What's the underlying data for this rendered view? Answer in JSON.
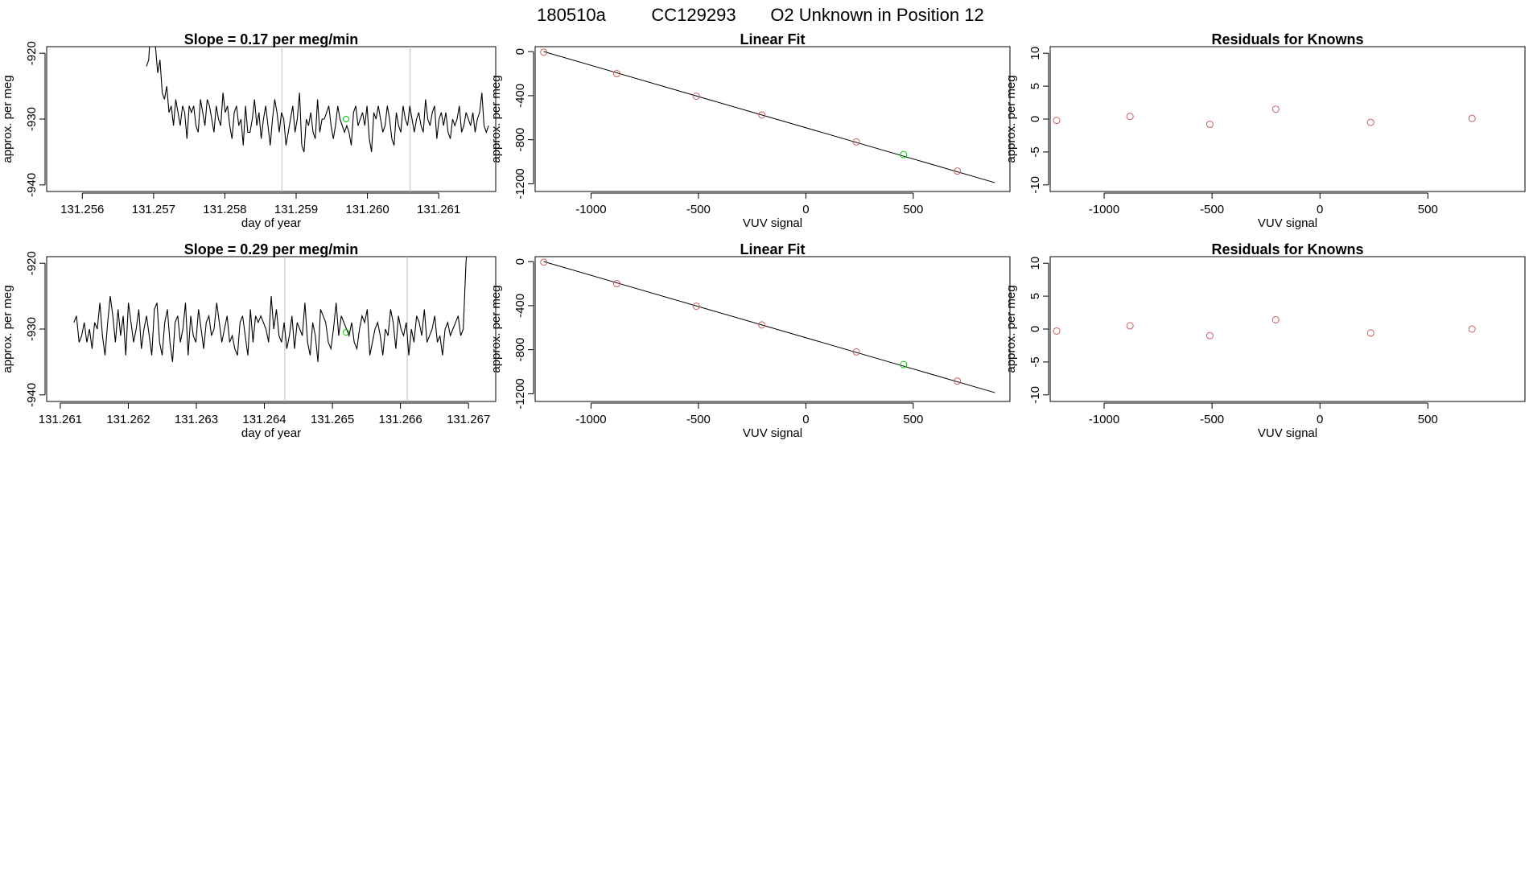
{
  "page_title": {
    "run": "180510a",
    "cylinder": "CC129293",
    "description": "O2 Unknown in Position  12"
  },
  "colors": {
    "line": "#000000",
    "known_point": "#cd5c5c",
    "unknown_point": "#00cc00",
    "vline": "#bebebe"
  },
  "chart_data": [
    {
      "id": "ts1",
      "type": "line",
      "title": "Slope =  0.17  per meg/min",
      "xlabel": "day of year",
      "ylabel": "approx. per meg",
      "xlim": [
        131.2555,
        131.2618
      ],
      "ylim": [
        -941,
        -919
      ],
      "xticks": [
        131.256,
        131.257,
        131.258,
        131.259,
        131.26,
        131.261
      ],
      "xtick_labels": [
        "131.256",
        "131.257",
        "131.258",
        "131.259",
        "131.260",
        "131.261"
      ],
      "yticks": [
        -920,
        -930,
        -940
      ],
      "ytick_labels": [
        "-920",
        "-930",
        "-940"
      ],
      "vlines": [
        131.2588,
        131.2606
      ],
      "highlight_point": {
        "x": 131.2597,
        "y": -930
      },
      "series": {
        "x_start": 131.2569,
        "x_end": 131.2617,
        "y": [
          -922,
          -921,
          -915,
          -917,
          -919,
          -923,
          -921,
          -926,
          -927,
          -925,
          -929,
          -928,
          -931,
          -927,
          -929,
          -931,
          -928,
          -929,
          -933,
          -928,
          -929,
          -928,
          -931,
          -932,
          -927,
          -929,
          -931,
          -927,
          -928,
          -930,
          -932,
          -928,
          -930,
          -931,
          -926,
          -929,
          -928,
          -931,
          -933,
          -929,
          -928,
          -931,
          -930,
          -934,
          -928,
          -932,
          -932,
          -930,
          -927,
          -931,
          -929,
          -933,
          -930,
          -928,
          -931,
          -934,
          -930,
          -927,
          -929,
          -932,
          -929,
          -930,
          -934,
          -932,
          -930,
          -928,
          -932,
          -930,
          -926,
          -934,
          -935,
          -930,
          -931,
          -929,
          -932,
          -933,
          -927,
          -932,
          -930,
          -930,
          -929,
          -928,
          -931,
          -933,
          -931,
          -928,
          -930,
          -931,
          -932,
          -931,
          -932,
          -934,
          -929,
          -928,
          -931,
          -930,
          -929,
          -931,
          -928,
          -933,
          -935,
          -929,
          -930,
          -928,
          -930,
          -932,
          -931,
          -928,
          -930,
          -933,
          -934,
          -929,
          -931,
          -932,
          -928,
          -930,
          -931,
          -928,
          -930,
          -932,
          -930,
          -929,
          -931,
          -932,
          -927,
          -930,
          -931,
          -929,
          -928,
          -933,
          -930,
          -929,
          -931,
          -929,
          -932,
          -933,
          -930,
          -931,
          -930,
          -928,
          -932,
          -931,
          -929,
          -930,
          -931,
          -929,
          -932,
          -930,
          -929,
          -926,
          -931,
          -932,
          -931
        ]
      }
    },
    {
      "id": "lf1",
      "type": "scatter",
      "title": "Linear Fit",
      "xlabel": "VUV signal",
      "ylabel": "approx. per meg",
      "xlim": [
        -1260,
        950
      ],
      "ylim": [
        -1270,
        45
      ],
      "xticks": [
        -1000,
        -500,
        0,
        500
      ],
      "xtick_labels": [
        "-1000",
        "-500",
        "0",
        "500"
      ],
      "yticks": [
        0,
        -400,
        -800,
        -1200
      ],
      "ytick_labels": [
        "0",
        "-400",
        "-800",
        "-1200"
      ],
      "fit_line": {
        "x0": -1220,
        "y0": 0,
        "x1": 880,
        "y1": -1190
      },
      "known_points": [
        {
          "x": -1220,
          "y": -5
        },
        {
          "x": -880,
          "y": -200
        },
        {
          "x": -510,
          "y": -405
        },
        {
          "x": -205,
          "y": -575
        },
        {
          "x": 235,
          "y": -820
        },
        {
          "x": 705,
          "y": -1085
        }
      ],
      "unknown_points": [
        {
          "x": 455,
          "y": -935
        }
      ]
    },
    {
      "id": "rs1",
      "type": "scatter",
      "title": "Residuals for Knowns",
      "xlabel": "VUV signal",
      "ylabel": "approx. per meg",
      "xlim": [
        -1250,
        950
      ],
      "ylim": [
        -11,
        11
      ],
      "xticks": [
        -1000,
        -500,
        0,
        500
      ],
      "xtick_labels": [
        "-1000",
        "-500",
        "0",
        "500"
      ],
      "yticks": [
        10,
        5,
        0,
        -5,
        -10
      ],
      "ytick_labels": [
        "10",
        "5",
        "0",
        "-5",
        "-10"
      ],
      "known_points": [
        {
          "x": -1220,
          "y": -0.2
        },
        {
          "x": -880,
          "y": 0.4
        },
        {
          "x": -510,
          "y": -0.8
        },
        {
          "x": -205,
          "y": 1.5
        },
        {
          "x": 235,
          "y": -0.5
        },
        {
          "x": 705,
          "y": 0.1
        }
      ]
    },
    {
      "id": "ts2",
      "type": "line",
      "title": "Slope =  0.29  per meg/min",
      "xlabel": "day of year",
      "ylabel": "approx. per meg",
      "xlim": [
        131.2608,
        131.2674
      ],
      "ylim": [
        -941,
        -919
      ],
      "xticks": [
        131.261,
        131.262,
        131.263,
        131.264,
        131.265,
        131.266,
        131.267
      ],
      "xtick_labels": [
        "131.261",
        "131.262",
        "131.263",
        "131.264",
        "131.265",
        "131.266",
        "131.267"
      ],
      "yticks": [
        -920,
        -930,
        -940
      ],
      "ytick_labels": [
        "-920",
        "-930",
        "-940"
      ],
      "vlines": [
        131.2643,
        131.2661
      ],
      "highlight_point": {
        "x": 131.2652,
        "y": -930.5
      },
      "series": {
        "x_start": 131.2612,
        "x_end": 131.267,
        "y": [
          -929,
          -928,
          -932,
          -931,
          -929,
          -932,
          -930,
          -933,
          -929,
          -930,
          -926,
          -931,
          -934,
          -929,
          -925,
          -928,
          -932,
          -927,
          -931,
          -928,
          -934,
          -926,
          -929,
          -932,
          -930,
          -927,
          -933,
          -930,
          -928,
          -931,
          -934,
          -927,
          -926,
          -932,
          -934,
          -929,
          -927,
          -932,
          -935,
          -929,
          -928,
          -932,
          -930,
          -926,
          -934,
          -928,
          -931,
          -932,
          -927,
          -930,
          -933,
          -929,
          -928,
          -931,
          -930,
          -926,
          -929,
          -932,
          -930,
          -928,
          -932,
          -931,
          -933,
          -934,
          -929,
          -928,
          -931,
          -934,
          -927,
          -932,
          -928,
          -929,
          -928,
          -929,
          -930,
          -932,
          -925,
          -930,
          -927,
          -931,
          -932,
          -929,
          -933,
          -931,
          -928,
          -933,
          -929,
          -930,
          -931,
          -926,
          -932,
          -934,
          -929,
          -931,
          -935,
          -927,
          -928,
          -929,
          -932,
          -933,
          -930,
          -926,
          -931,
          -928,
          -929,
          -930,
          -931,
          -929,
          -932,
          -933,
          -930,
          -928,
          -929,
          -927,
          -934,
          -932,
          -930,
          -929,
          -931,
          -934,
          -930,
          -931,
          -927,
          -929,
          -933,
          -928,
          -930,
          -931,
          -929,
          -934,
          -930,
          -932,
          -928,
          -929,
          -931,
          -927,
          -932,
          -931,
          -930,
          -928,
          -932,
          -931,
          -934,
          -930,
          -929,
          -931,
          -930,
          -929,
          -928,
          -931,
          -930,
          -920,
          -915
        ]
      }
    },
    {
      "id": "lf2",
      "type": "scatter",
      "title": "Linear Fit",
      "xlabel": "VUV signal",
      "ylabel": "approx. per meg",
      "xlim": [
        -1260,
        950
      ],
      "ylim": [
        -1270,
        45
      ],
      "xticks": [
        -1000,
        -500,
        0,
        500
      ],
      "xtick_labels": [
        "-1000",
        "-500",
        "0",
        "500"
      ],
      "yticks": [
        0,
        -400,
        -800,
        -1200
      ],
      "ytick_labels": [
        "0",
        "-400",
        "-800",
        "-1200"
      ],
      "fit_line": {
        "x0": -1220,
        "y0": 0,
        "x1": 880,
        "y1": -1190
      },
      "known_points": [
        {
          "x": -1220,
          "y": -5
        },
        {
          "x": -880,
          "y": -200
        },
        {
          "x": -510,
          "y": -405
        },
        {
          "x": -205,
          "y": -575
        },
        {
          "x": 235,
          "y": -820
        },
        {
          "x": 705,
          "y": -1085
        }
      ],
      "unknown_points": [
        {
          "x": 455,
          "y": -935
        }
      ]
    },
    {
      "id": "rs2",
      "type": "scatter",
      "title": "Residuals for Knowns",
      "xlabel": "VUV signal",
      "ylabel": "approx. per meg",
      "xlim": [
        -1250,
        950
      ],
      "ylim": [
        -11,
        11
      ],
      "xticks": [
        -1000,
        -500,
        0,
        500
      ],
      "xtick_labels": [
        "-1000",
        "-500",
        "0",
        "500"
      ],
      "yticks": [
        10,
        5,
        0,
        -5,
        -10
      ],
      "ytick_labels": [
        "10",
        "5",
        "0",
        "-5",
        "-10"
      ],
      "known_points": [
        {
          "x": -1220,
          "y": -0.3
        },
        {
          "x": -880,
          "y": 0.5
        },
        {
          "x": -510,
          "y": -1.0
        },
        {
          "x": -205,
          "y": 1.4
        },
        {
          "x": 235,
          "y": -0.6
        },
        {
          "x": 705,
          "y": 0.0
        }
      ]
    }
  ]
}
